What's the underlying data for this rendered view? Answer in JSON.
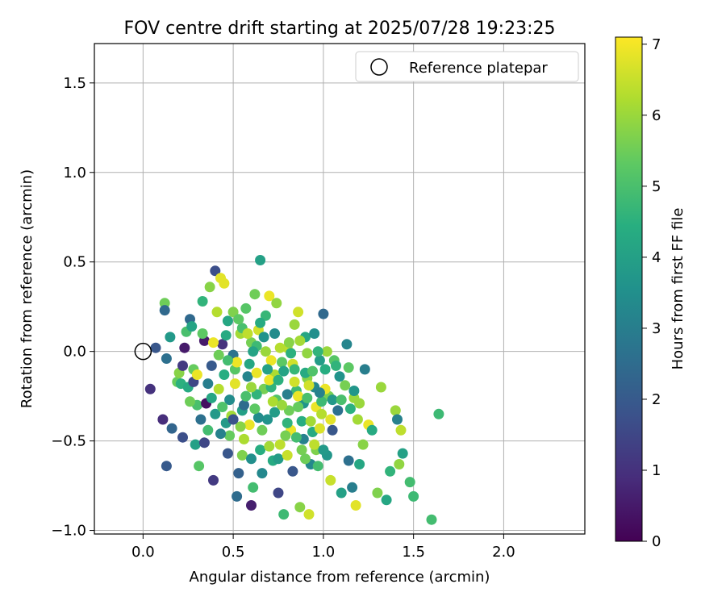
{
  "chart_data": {
    "type": "scatter",
    "title": "FOV centre drift starting at 2025/07/28 19:23:25",
    "xlabel": "Angular distance from reference (arcmin)",
    "ylabel": "Rotation from reference (arcmin)",
    "xlim": [
      -0.27,
      2.45
    ],
    "ylim": [
      -1.02,
      1.72
    ],
    "xticks": [
      "0.0",
      "0.5",
      "1.0",
      "1.5",
      "2.0"
    ],
    "xtick_values": [
      0,
      0.5,
      1.0,
      1.5,
      2.0
    ],
    "yticks": [
      "−1.0",
      "−0.5",
      "0.0",
      "0.5",
      "1.0",
      "1.5"
    ],
    "ytick_values": [
      -1.0,
      -0.5,
      0,
      0.5,
      1.0,
      1.5
    ],
    "grid": true,
    "legend_position": "top-right",
    "reference": {
      "name": "Reference platepar",
      "x": 0,
      "y": 0,
      "marker": "open-circle"
    },
    "colorbar": {
      "label": "Hours from first FF file",
      "range": [
        0,
        7.1
      ],
      "ticks": [
        "0",
        "1",
        "2",
        "3",
        "4",
        "5",
        "6",
        "7"
      ],
      "tick_values": [
        0,
        1,
        2,
        3,
        4,
        5,
        6,
        7
      ],
      "colormap": "viridis"
    },
    "points": [
      [
        0.04,
        -0.21,
        1.0
      ],
      [
        0.07,
        0.02,
        1.9
      ],
      [
        0.12,
        0.27,
        5.5
      ],
      [
        0.12,
        0.23,
        2.4
      ],
      [
        0.13,
        -0.04,
        2.6
      ],
      [
        0.15,
        0.08,
        3.8
      ],
      [
        0.16,
        -0.43,
        2.3
      ],
      [
        0.11,
        -0.38,
        0.9
      ],
      [
        0.13,
        -0.64,
        2.0
      ],
      [
        0.19,
        -0.17,
        5.4
      ],
      [
        0.2,
        -0.12,
        5.8
      ],
      [
        0.21,
        -0.18,
        4.5
      ],
      [
        0.22,
        -0.08,
        1.2
      ],
      [
        0.23,
        0.02,
        0.5
      ],
      [
        0.24,
        0.11,
        5.0
      ],
      [
        0.25,
        -0.2,
        4.3
      ],
      [
        0.26,
        0.18,
        2.4
      ],
      [
        0.27,
        0.14,
        4.1
      ],
      [
        0.28,
        -0.1,
        5.4
      ],
      [
        0.29,
        -0.52,
        4.0
      ],
      [
        0.3,
        -0.3,
        5.0
      ],
      [
        0.31,
        -0.64,
        5.2
      ],
      [
        0.32,
        -0.38,
        2.6
      ],
      [
        0.33,
        0.28,
        4.6
      ],
      [
        0.34,
        0.06,
        0.5
      ],
      [
        0.35,
        -0.29,
        0.3
      ],
      [
        0.36,
        -0.18,
        3.0
      ],
      [
        0.37,
        0.36,
        5.8
      ],
      [
        0.38,
        -0.26,
        4.2
      ],
      [
        0.39,
        -0.72,
        1.2
      ],
      [
        0.4,
        0.45,
        1.7
      ],
      [
        0.41,
        0.22,
        6.3
      ],
      [
        0.42,
        -0.02,
        5.5
      ],
      [
        0.43,
        0.41,
        6.8
      ],
      [
        0.44,
        0.04,
        1.0
      ],
      [
        0.45,
        0.38,
        6.8
      ],
      [
        0.46,
        -0.4,
        3.8
      ],
      [
        0.47,
        0.17,
        4.2
      ],
      [
        0.48,
        -0.27,
        3.4
      ],
      [
        0.5,
        0.22,
        5.7
      ],
      [
        0.5,
        -0.02,
        2.7
      ],
      [
        0.51,
        -0.1,
        5.2
      ],
      [
        0.52,
        -0.81,
        2.5
      ],
      [
        0.53,
        -0.68,
        2.2
      ],
      [
        0.54,
        0.1,
        6.1
      ],
      [
        0.55,
        -0.33,
        4.0
      ],
      [
        0.56,
        -0.49,
        6.2
      ],
      [
        0.57,
        0.24,
        5.2
      ],
      [
        0.58,
        -0.14,
        3.2
      ],
      [
        0.59,
        -0.41,
        6.9
      ],
      [
        0.6,
        -0.86,
        0.6
      ],
      [
        0.6,
        0.05,
        5.6
      ],
      [
        0.61,
        -0.76,
        4.9
      ],
      [
        0.62,
        0.32,
        5.5
      ],
      [
        0.63,
        -0.12,
        6.9
      ],
      [
        0.64,
        0.12,
        6.6
      ],
      [
        0.65,
        0.51,
        4.0
      ],
      [
        0.66,
        -0.68,
        3.3
      ],
      [
        0.67,
        -0.21,
        5.6
      ],
      [
        0.68,
        0.0,
        6.0
      ],
      [
        0.69,
        -0.38,
        3.6
      ],
      [
        0.7,
        0.31,
        6.9
      ],
      [
        0.71,
        -0.2,
        4.6
      ],
      [
        0.72,
        -0.61,
        4.3
      ],
      [
        0.73,
        -0.13,
        6.2
      ],
      [
        0.74,
        0.27,
        5.9
      ],
      [
        0.75,
        -0.79,
        1.5
      ],
      [
        0.76,
        -0.52,
        6.4
      ],
      [
        0.77,
        -0.06,
        5.3
      ],
      [
        0.78,
        -0.91,
        4.8
      ],
      [
        0.8,
        0.02,
        6.4
      ],
      [
        0.81,
        -0.33,
        5.5
      ],
      [
        0.82,
        -0.44,
        6.9
      ],
      [
        0.83,
        -0.67,
        1.9
      ],
      [
        0.84,
        0.15,
        6.0
      ],
      [
        0.85,
        -0.22,
        4.8
      ],
      [
        0.86,
        0.22,
        6.6
      ],
      [
        0.87,
        -0.87,
        5.8
      ],
      [
        0.88,
        -0.55,
        5.6
      ],
      [
        0.89,
        -0.29,
        3.6
      ],
      [
        0.9,
        0.08,
        4.2
      ],
      [
        0.91,
        -0.15,
        5.8
      ],
      [
        0.92,
        -0.91,
        6.6
      ],
      [
        0.93,
        -0.63,
        3.3
      ],
      [
        0.94,
        -0.45,
        4.3
      ],
      [
        0.95,
        0.1,
        3.5
      ],
      [
        0.96,
        -0.31,
        6.9
      ],
      [
        0.97,
        -0.64,
        4.9
      ],
      [
        0.98,
        -0.05,
        3.9
      ],
      [
        0.99,
        -0.35,
        6.3
      ],
      [
        1.0,
        0.21,
        2.4
      ],
      [
        1.01,
        -0.1,
        4.4
      ],
      [
        1.02,
        -0.58,
        3.7
      ],
      [
        1.03,
        -0.25,
        5.6
      ],
      [
        1.04,
        -0.72,
        6.5
      ],
      [
        1.05,
        -0.44,
        1.9
      ],
      [
        1.06,
        -0.05,
        5.2
      ],
      [
        1.08,
        -0.33,
        2.6
      ],
      [
        1.1,
        -0.79,
        4.0
      ],
      [
        1.12,
        -0.19,
        5.6
      ],
      [
        1.13,
        0.04,
        3.2
      ],
      [
        1.14,
        -0.61,
        2.6
      ],
      [
        1.15,
        -0.32,
        4.5
      ],
      [
        1.16,
        -0.76,
        3.0
      ],
      [
        1.17,
        -0.26,
        6.0
      ],
      [
        1.18,
        -0.86,
        6.8
      ],
      [
        1.19,
        -0.38,
        6.1
      ],
      [
        1.2,
        -0.63,
        4.2
      ],
      [
        1.22,
        -0.52,
        5.8
      ],
      [
        1.23,
        -0.1,
        3.0
      ],
      [
        1.25,
        -0.41,
        6.9
      ],
      [
        1.27,
        -0.44,
        4.3
      ],
      [
        1.3,
        -0.79,
        5.7
      ],
      [
        1.32,
        -0.2,
        6.0
      ],
      [
        1.35,
        -0.83,
        4.2
      ],
      [
        1.37,
        -0.67,
        4.6
      ],
      [
        1.4,
        -0.33,
        6.0
      ],
      [
        1.41,
        -0.38,
        3.1
      ],
      [
        1.42,
        -0.63,
        5.9
      ],
      [
        1.43,
        -0.44,
        6.4
      ],
      [
        1.44,
        -0.57,
        4.0
      ],
      [
        1.48,
        -0.73,
        4.9
      ],
      [
        1.5,
        -0.81,
        4.8
      ],
      [
        1.6,
        -0.94,
        4.9
      ],
      [
        1.64,
        -0.35,
        4.8
      ],
      [
        0.55,
        0.13,
        5.0
      ],
      [
        0.59,
        -0.07,
        4.2
      ],
      [
        0.63,
        -0.24,
        4.6
      ],
      [
        0.67,
        0.08,
        3.6
      ],
      [
        0.71,
        -0.05,
        6.9
      ],
      [
        0.74,
        -0.27,
        5.1
      ],
      [
        0.78,
        -0.11,
        4.1
      ],
      [
        0.81,
        0.05,
        5.8
      ],
      [
        0.84,
        -0.17,
        6.6
      ],
      [
        0.88,
        -0.39,
        4.4
      ],
      [
        0.91,
        -0.01,
        5.9
      ],
      [
        0.95,
        -0.2,
        3.3
      ],
      [
        0.98,
        -0.43,
        6.7
      ],
      [
        1.02,
        0.0,
        6.0
      ],
      [
        1.05,
        -0.27,
        3.8
      ],
      [
        1.09,
        -0.14,
        3.6
      ],
      [
        0.45,
        -0.13,
        4.4
      ],
      [
        0.48,
        -0.47,
        5.4
      ],
      [
        0.52,
        -0.06,
        6.9
      ],
      [
        0.56,
        -0.3,
        2.5
      ],
      [
        0.6,
        -0.2,
        6.0
      ],
      [
        0.63,
        0.03,
        4.8
      ],
      [
        0.66,
        -0.44,
        5.5
      ],
      [
        0.7,
        -0.16,
        6.9
      ],
      [
        0.73,
        -0.34,
        3.9
      ],
      [
        0.76,
        0.02,
        6.3
      ],
      [
        0.8,
        -0.24,
        3.0
      ],
      [
        0.83,
        -0.07,
        6.6
      ],
      [
        0.86,
        -0.31,
        5.4
      ],
      [
        0.9,
        -0.12,
        4.3
      ],
      [
        0.93,
        -0.39,
        6.1
      ],
      [
        0.97,
        0.0,
        4.6
      ],
      [
        1.01,
        -0.21,
        6.9
      ],
      [
        0.39,
        0.05,
        6.9
      ],
      [
        0.42,
        -0.21,
        6.3
      ],
      [
        0.46,
        0.09,
        4.3
      ],
      [
        0.49,
        -0.36,
        6.1
      ],
      [
        0.53,
        0.18,
        5.3
      ],
      [
        0.57,
        -0.25,
        5.0
      ],
      [
        0.61,
        0.0,
        4.1
      ],
      [
        0.64,
        -0.37,
        3.4
      ],
      [
        0.68,
        0.2,
        4.7
      ],
      [
        0.72,
        -0.28,
        6.2
      ],
      [
        0.75,
        -0.16,
        4.5
      ],
      [
        0.79,
        -0.47,
        5.6
      ],
      [
        0.82,
        -0.01,
        4.5
      ],
      [
        0.86,
        -0.25,
        6.9
      ],
      [
        0.89,
        -0.49,
        3.1
      ],
      [
        0.92,
        -0.19,
        6.6
      ],
      [
        0.96,
        -0.55,
        5.7
      ],
      [
        0.99,
        -0.28,
        4.8
      ],
      [
        0.55,
        -0.58,
        5.7
      ],
      [
        0.6,
        -0.6,
        3.5
      ],
      [
        0.65,
        -0.55,
        4.4
      ],
      [
        0.7,
        -0.53,
        6.1
      ],
      [
        0.75,
        -0.6,
        3.9
      ],
      [
        0.8,
        -0.58,
        6.5
      ],
      [
        0.85,
        -0.48,
        4.9
      ],
      [
        0.9,
        -0.6,
        5.5
      ],
      [
        0.95,
        -0.52,
        6.4
      ],
      [
        1.0,
        -0.55,
        3.8
      ],
      [
        0.36,
        -0.44,
        4.9
      ],
      [
        0.4,
        -0.35,
        3.8
      ],
      [
        0.44,
        -0.31,
        5.1
      ],
      [
        0.47,
        -0.05,
        4.9
      ],
      [
        0.51,
        -0.18,
        6.8
      ],
      [
        0.54,
        -0.42,
        5.8
      ],
      [
        0.58,
        0.1,
        6.4
      ],
      [
        0.62,
        -0.32,
        5.3
      ],
      [
        0.65,
        0.16,
        4.3
      ],
      [
        0.69,
        -0.1,
        4.0
      ],
      [
        0.73,
        0.1,
        3.4
      ],
      [
        0.77,
        -0.3,
        6.0
      ],
      [
        0.8,
        -0.4,
        4.6
      ],
      [
        0.84,
        -0.1,
        4.7
      ],
      [
        0.87,
        0.06,
        6.1
      ],
      [
        0.91,
        -0.26,
        5.0
      ],
      [
        0.94,
        -0.11,
        5.1
      ],
      [
        0.98,
        -0.23,
        3.1
      ],
      [
        1.04,
        -0.38,
        6.8
      ],
      [
        1.07,
        -0.08,
        4.6
      ],
      [
        1.1,
        -0.27,
        5.0
      ],
      [
        1.14,
        -0.09,
        5.3
      ],
      [
        1.17,
        -0.22,
        3.7
      ],
      [
        1.2,
        -0.29,
        6.0
      ],
      [
        0.28,
        -0.17,
        1.5
      ],
      [
        0.34,
        -0.51,
        1.5
      ],
      [
        0.38,
        -0.08,
        2.0
      ],
      [
        0.43,
        -0.46,
        3.1
      ],
      [
        0.47,
        -0.57,
        1.9
      ],
      [
        0.5,
        -0.38,
        1.8
      ],
      [
        0.22,
        -0.48,
        1.7
      ],
      [
        0.26,
        -0.28,
        5.5
      ],
      [
        0.3,
        -0.13,
        6.9
      ],
      [
        0.33,
        0.1,
        5.3
      ]
    ]
  }
}
